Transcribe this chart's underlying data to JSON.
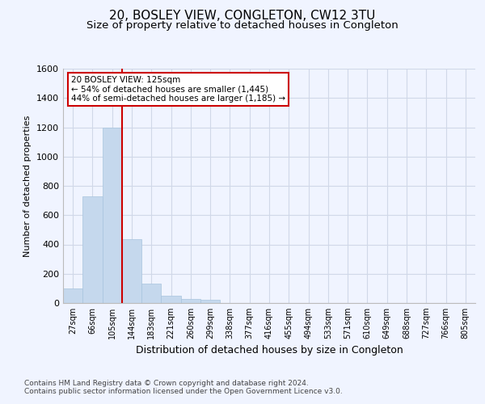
{
  "title1": "20, BOSLEY VIEW, CONGLETON, CW12 3TU",
  "title2": "Size of property relative to detached houses in Congleton",
  "xlabel": "Distribution of detached houses by size in Congleton",
  "ylabel": "Number of detached properties",
  "footer": "Contains HM Land Registry data © Crown copyright and database right 2024.\nContains public sector information licensed under the Open Government Licence v3.0.",
  "categories": [
    "27sqm",
    "66sqm",
    "105sqm",
    "144sqm",
    "183sqm",
    "221sqm",
    "260sqm",
    "299sqm",
    "338sqm",
    "377sqm",
    "416sqm",
    "455sqm",
    "494sqm",
    "533sqm",
    "571sqm",
    "610sqm",
    "649sqm",
    "688sqm",
    "727sqm",
    "766sqm",
    "805sqm"
  ],
  "values": [
    100,
    730,
    1200,
    435,
    135,
    50,
    30,
    20,
    0,
    0,
    0,
    0,
    0,
    0,
    0,
    0,
    0,
    0,
    0,
    0,
    0
  ],
  "bar_color": "#c5d8ed",
  "bar_edge_color": "#a8c4de",
  "grid_color": "#d0d8e8",
  "vline_color": "#cc0000",
  "annotation_text": "20 BOSLEY VIEW: 125sqm\n← 54% of detached houses are smaller (1,445)\n44% of semi-detached houses are larger (1,185) →",
  "annotation_box_color": "white",
  "annotation_box_edge": "#cc0000",
  "ylim": [
    0,
    1600
  ],
  "yticks": [
    0,
    200,
    400,
    600,
    800,
    1000,
    1200,
    1400,
    1600
  ],
  "background_color": "#f0f4ff",
  "title1_fontsize": 11,
  "title2_fontsize": 9.5,
  "ylabel_fontsize": 8,
  "xlabel_fontsize": 9,
  "footer_fontsize": 6.5
}
